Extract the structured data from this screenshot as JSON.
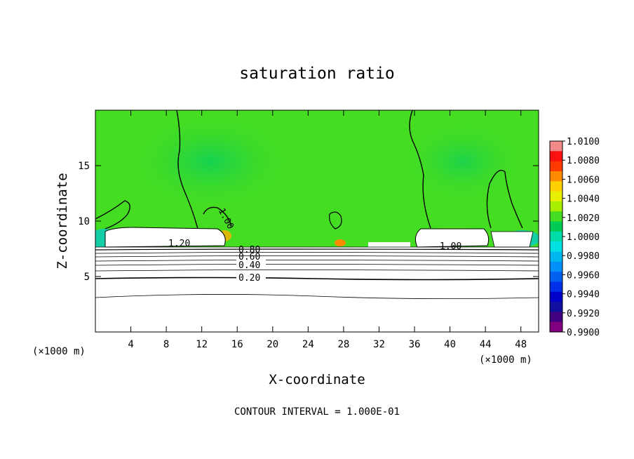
{
  "chart_data": {
    "type": "heatmap",
    "title": "saturation ratio",
    "xlabel": "X-coordinate",
    "ylabel": "Z-coordinate",
    "x_unit_left": "(×1000 m)",
    "x_unit_right": "(×1000 m)",
    "xlim": [
      0,
      50
    ],
    "ylim": [
      0,
      20
    ],
    "x_ticks": [
      4,
      8,
      12,
      16,
      20,
      24,
      28,
      32,
      36,
      40,
      44,
      48
    ],
    "y_ticks": [
      5,
      10,
      15
    ],
    "footer": "CONTOUR INTERVAL = 1.000E-01",
    "colorbar": {
      "min": 0.99,
      "max": 1.01,
      "labels": [
        "1.0100",
        "1.0080",
        "1.0060",
        "1.0040",
        "1.0020",
        "1.0000",
        "0.9980",
        "0.9960",
        "0.9940",
        "0.9920",
        "0.9900"
      ],
      "colors": [
        "#f28a8a",
        "#ff1010",
        "#ff3a00",
        "#ff8c00",
        "#ffd000",
        "#e8f000",
        "#a8ee00",
        "#44dd22",
        "#00cc55",
        "#00ddaa",
        "#00e0e0",
        "#00b8f0",
        "#0090f8",
        "#0060f0",
        "#0030e8",
        "#0000c8",
        "#1010a0",
        "#400080",
        "#800080"
      ]
    },
    "contours": [
      {
        "label": "0.20",
        "z": 4.9
      },
      {
        "label": "0.40",
        "z": 6.0
      },
      {
        "label": "0.60",
        "z": 7.1
      },
      {
        "label": "0.80",
        "z": 7.4
      },
      {
        "label": "1.00",
        "z": 10.0
      },
      {
        "label": "1.20",
        "z": 8.0
      },
      {
        "label": "1.00",
        "z": 7.7
      }
    ]
  }
}
